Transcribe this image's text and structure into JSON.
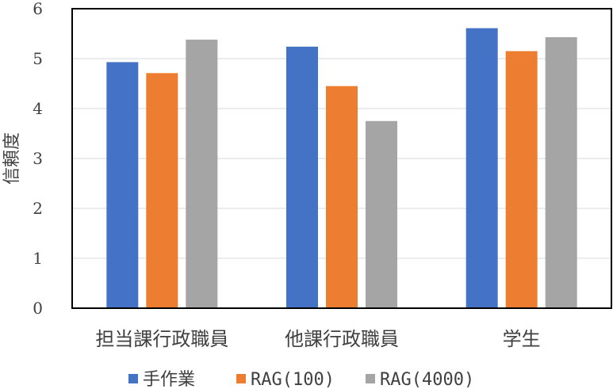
{
  "chart_data": {
    "type": "bar",
    "categories": [
      "担当課行政職員",
      "他課行政職員",
      "学生"
    ],
    "series": [
      {
        "name": "手作業",
        "values": [
          4.93,
          5.24,
          5.61
        ],
        "color": "#4472C4"
      },
      {
        "name": "RAG(100)",
        "values": [
          4.71,
          4.45,
          5.15
        ],
        "color": "#ED7D31"
      },
      {
        "name": "RAG(4000)",
        "values": [
          5.38,
          3.75,
          5.43
        ],
        "color": "#A5A5A5"
      }
    ],
    "ylabel": "信頼度",
    "xlabel": "",
    "title": "",
    "ylim": [
      0,
      6
    ],
    "yticks": [
      0,
      1,
      2,
      3,
      4,
      5,
      6
    ],
    "grid": true,
    "legend_position": "bottom"
  }
}
